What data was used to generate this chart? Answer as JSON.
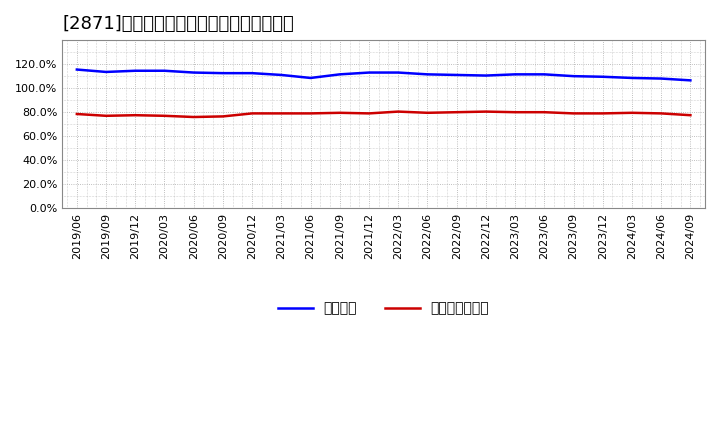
{
  "title": "[2871]　固定比率、固定長期適合率の推移",
  "x_labels": [
    "2019/06",
    "2019/09",
    "2019/12",
    "2020/03",
    "2020/06",
    "2020/09",
    "2020/12",
    "2021/03",
    "2021/06",
    "2021/09",
    "2021/12",
    "2022/03",
    "2022/06",
    "2022/09",
    "2022/12",
    "2023/03",
    "2023/06",
    "2023/09",
    "2023/12",
    "2024/03",
    "2024/06",
    "2024/09"
  ],
  "blue_values": [
    1.155,
    1.135,
    1.145,
    1.145,
    1.13,
    1.125,
    1.125,
    1.11,
    1.085,
    1.115,
    1.13,
    1.13,
    1.115,
    1.11,
    1.105,
    1.115,
    1.115,
    1.1,
    1.095,
    1.085,
    1.08,
    1.065
  ],
  "red_values": [
    0.785,
    0.77,
    0.775,
    0.77,
    0.76,
    0.765,
    0.79,
    0.79,
    0.79,
    0.795,
    0.79,
    0.805,
    0.795,
    0.8,
    0.805,
    0.8,
    0.8,
    0.79,
    0.79,
    0.795,
    0.79,
    0.775
  ],
  "blue_label": "固定比率",
  "red_label": "固定長期適合率",
  "ylim": [
    0.0,
    1.4
  ],
  "yticks": [
    0.0,
    0.2,
    0.4,
    0.6,
    0.8,
    1.0,
    1.2
  ],
  "blue_color": "#0000ff",
  "red_color": "#cc0000",
  "background_color": "#ffffff",
  "plot_bg_color": "#ffffff",
  "grid_color": "#aaaaaa",
  "title_fontsize": 13,
  "legend_fontsize": 10,
  "tick_fontsize": 8
}
